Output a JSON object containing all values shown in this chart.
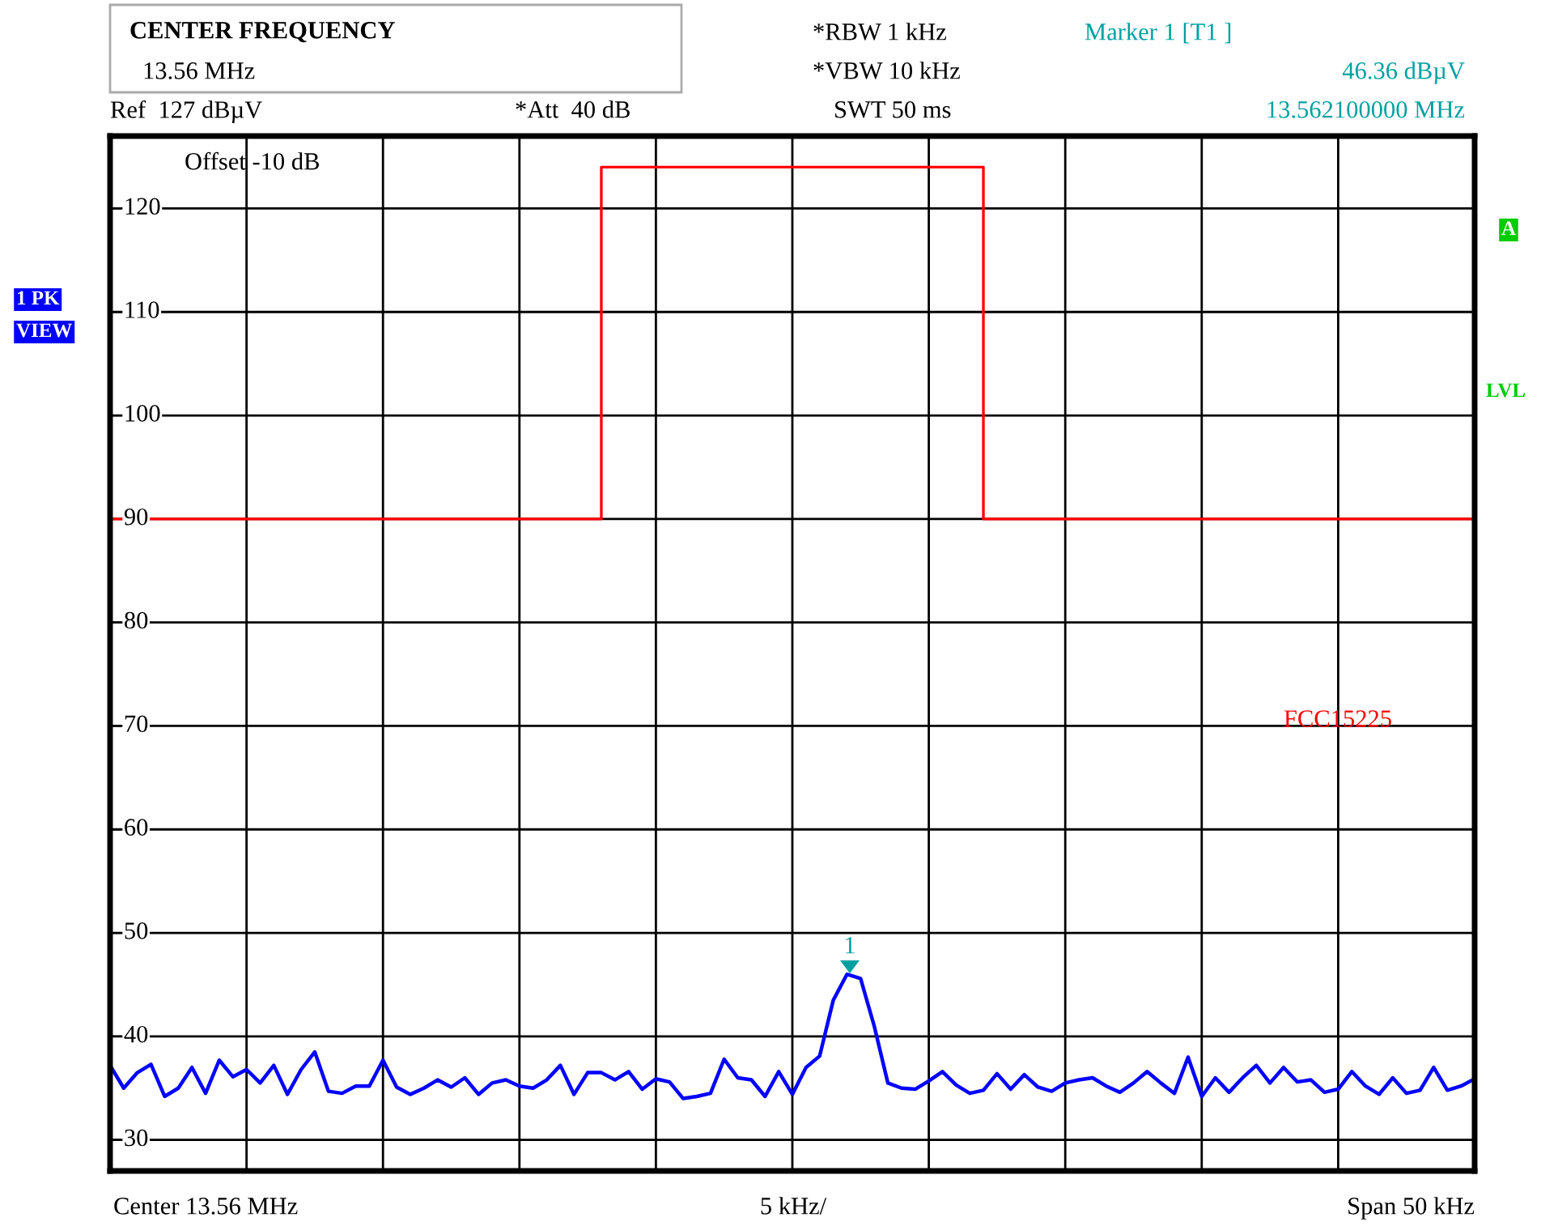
{
  "chart_data": {
    "type": "line",
    "annotations": [
      "CENTER FREQUENCY",
      "13.56 MHz",
      "*RBW 1 kHz",
      "*VBW 10 kHz",
      "SWT 50 ms",
      "Marker 1 [T1 ]",
      "46.36 dBµV",
      "13.562100000 MHz",
      "Ref  127 dBµV",
      "*Att  40 dB",
      "Offset -10 dB",
      "1 PK",
      "VIEW",
      "A",
      "LVL",
      "Center 13.56 MHz",
      "5 kHz/",
      "Span 50 kHz",
      "1"
    ],
    "categories": [
      null,
      null,
      null,
      null,
      null,
      null,
      null,
      null,
      null,
      null,
      null,
      null,
      null,
      null,
      null,
      null,
      null,
      null,
      null,
      null,
      null,
      null,
      null,
      null,
      null,
      null,
      null,
      null,
      null,
      null,
      null,
      null,
      null,
      null,
      null,
      null,
      null,
      null,
      null,
      null,
      null,
      null,
      null,
      null,
      null,
      null,
      null,
      null,
      null,
      null,
      null,
      null,
      null,
      null,
      null,
      null,
      null,
      null,
      null,
      null,
      null,
      null,
      null,
      null,
      null,
      null,
      null,
      null,
      null,
      null,
      null,
      null,
      null,
      null,
      null,
      null,
      null,
      null,
      null,
      null,
      null,
      null,
      null,
      null,
      null,
      null,
      null,
      null,
      null,
      null,
      null,
      null,
      null,
      null,
      null,
      null,
      null,
      null,
      null,
      null,
      null
    ],
    "ylim": [
      27,
      127
    ],
    "yticks": [
      30,
      40,
      50,
      60,
      70,
      80,
      90,
      100,
      110,
      120
    ],
    "tick_labels": "y",
    "grid": true,
    "series": [
      {
        "color": "#0000ff",
        "values": [
          37.2,
          35.0,
          36.5,
          37.3,
          34.2,
          35.0,
          37.0,
          34.5,
          37.7,
          36.1,
          36.8,
          35.5,
          37.2,
          34.4,
          36.8,
          38.5,
          34.7,
          34.5,
          35.2,
          35.2,
          37.7,
          35.1,
          34.4,
          35.0,
          35.8,
          35.1,
          36.0,
          34.4,
          35.5,
          35.8,
          35.2,
          35.0,
          35.8,
          37.2,
          34.4,
          36.5,
          36.5,
          35.8,
          36.6,
          34.9,
          35.9,
          35.6,
          34.0,
          34.2,
          34.5,
          37.8,
          36.0,
          35.8,
          34.2,
          36.6,
          34.4,
          37.0,
          38.1,
          43.5,
          46.0,
          45.6,
          41.0,
          35.5,
          35.0,
          34.9,
          35.7,
          36.6,
          35.3,
          34.5,
          34.8,
          36.4,
          34.9,
          36.3,
          35.1,
          34.7,
          35.5,
          35.8,
          36.0,
          35.2,
          34.6,
          35.5,
          36.6,
          35.5,
          34.5,
          38.0,
          34.2,
          36.0,
          34.6,
          36.0,
          37.2,
          35.5,
          37.0,
          35.6,
          35.8,
          34.6,
          34.9,
          36.6,
          35.2,
          34.4,
          36.0,
          34.5,
          34.8,
          37.0,
          34.8,
          35.2,
          35.9
        ]
      },
      {
        "type": "step",
        "name": "FCC15225",
        "color": "#ff0000",
        "values": [
          90,
          90,
          90,
          90,
          90,
          90,
          90,
          90,
          90,
          90,
          90,
          90,
          90,
          90,
          90,
          90,
          90,
          90,
          90,
          90,
          90,
          90,
          90,
          90,
          90,
          90,
          90,
          90,
          90,
          90,
          90,
          90,
          90,
          90,
          90,
          90,
          124,
          124,
          124,
          124,
          124,
          124,
          124,
          124,
          124,
          124,
          124,
          124,
          124,
          124,
          124,
          124,
          124,
          124,
          124,
          124,
          124,
          124,
          124,
          124,
          124,
          124,
          124,
          124,
          90,
          90,
          90,
          90,
          90,
          90,
          90,
          90,
          90,
          90,
          90,
          90,
          90,
          90,
          90,
          90,
          90,
          90,
          90,
          90,
          90,
          90,
          90,
          90,
          90,
          90,
          90,
          90,
          90,
          90,
          90,
          90,
          90,
          90,
          90,
          90,
          90
        ]
      }
    ]
  }
}
